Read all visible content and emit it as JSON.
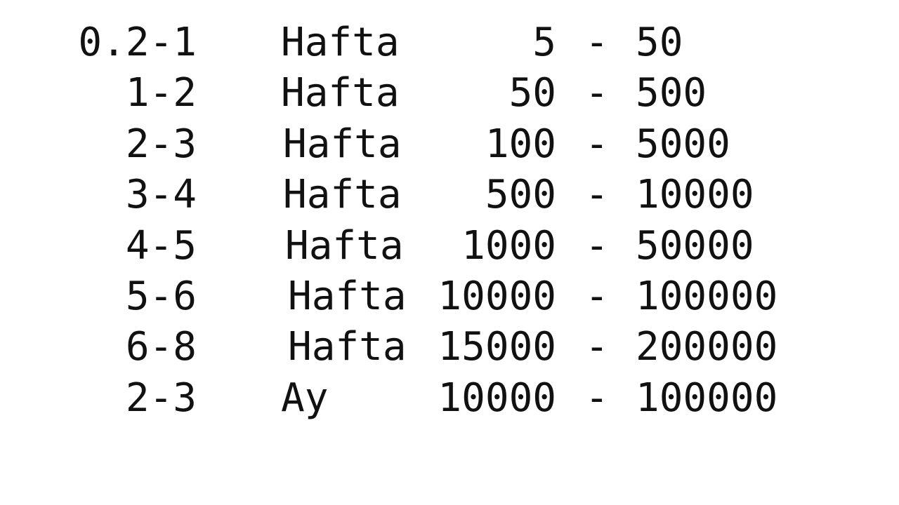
{
  "rows": [
    {
      "period": "0.2-1",
      "unit": "Hafta",
      "low": "5",
      "dash": "-",
      "high": "50"
    },
    {
      "period": "1-2",
      "unit": "Hafta",
      "low": "50",
      "dash": "-",
      "high": "500"
    },
    {
      "period": "2-3",
      "unit": "Hafta",
      "low": "100",
      "dash": "-",
      "high": "5000"
    },
    {
      "period": "3-4",
      "unit": "Hafta",
      "low": "500",
      "dash": "-",
      "high": "10000"
    },
    {
      "period": "4-5",
      "unit": "Hafta",
      "low": "1000",
      "dash": "-",
      "high": "50000"
    },
    {
      "period": "5-6",
      "unit": "Hafta",
      "low": "10000",
      "dash": "-",
      "high": "100000"
    },
    {
      "period": "6-8",
      "unit": "Hafta",
      "low": "15000",
      "dash": "-",
      "high": "200000"
    },
    {
      "period": "2-3",
      "unit": "Ay",
      "low": "10000",
      "dash": "-",
      "high": "100000"
    }
  ]
}
